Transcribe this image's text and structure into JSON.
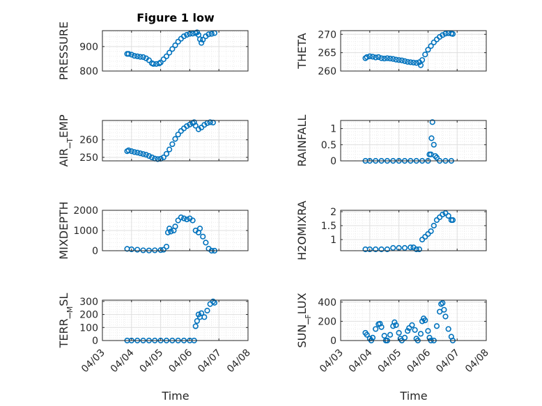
{
  "title": "Figure 1 low",
  "xlabel": "Time",
  "colors": {
    "marker": "#0072BD",
    "axis": "#262626",
    "grid": "#DFDFDF",
    "minor_grid": "#EBEBEB"
  },
  "chart_data": [
    {
      "type": "scatter",
      "ylabel": "PRESSURE",
      "ylim": [
        800,
        965
      ],
      "yticks": [
        800,
        900
      ],
      "xlim": [
        "04/03",
        "04/08"
      ],
      "xticks": [
        "04/03",
        "04/04",
        "04/05",
        "04/06",
        "04/07",
        "04/08"
      ],
      "grid": true,
      "points": [
        [
          3.85,
          870
        ],
        [
          3.9,
          870
        ],
        [
          4.0,
          867
        ],
        [
          4.1,
          862
        ],
        [
          4.2,
          860
        ],
        [
          4.3,
          858
        ],
        [
          4.4,
          857
        ],
        [
          4.5,
          852
        ],
        [
          4.6,
          844
        ],
        [
          4.7,
          832
        ],
        [
          4.75,
          829
        ],
        [
          4.85,
          829
        ],
        [
          4.95,
          831
        ],
        [
          5.0,
          835
        ],
        [
          5.1,
          848
        ],
        [
          5.2,
          860
        ],
        [
          5.3,
          875
        ],
        [
          5.4,
          890
        ],
        [
          5.5,
          905
        ],
        [
          5.6,
          920
        ],
        [
          5.7,
          932
        ],
        [
          5.8,
          942
        ],
        [
          5.9,
          948
        ],
        [
          6.0,
          952
        ],
        [
          6.1,
          953
        ],
        [
          6.2,
          955
        ],
        [
          6.25,
          958
        ],
        [
          6.3,
          948
        ],
        [
          6.35,
          930
        ],
        [
          6.4,
          915
        ],
        [
          6.45,
          928
        ],
        [
          6.55,
          942
        ],
        [
          6.65,
          950
        ],
        [
          6.75,
          952
        ],
        [
          6.85,
          955
        ]
      ]
    },
    {
      "type": "scatter",
      "ylabel": "THETA",
      "ylim": [
        260,
        271
      ],
      "yticks": [
        260,
        265,
        270
      ],
      "xlim": [
        "04/03",
        "04/08"
      ],
      "xticks": [
        "04/03",
        "04/04",
        "04/05",
        "04/06",
        "04/07",
        "04/08"
      ],
      "grid": true,
      "points": [
        [
          3.85,
          263.5
        ],
        [
          3.9,
          263.8
        ],
        [
          4.0,
          264.0
        ],
        [
          4.1,
          263.9
        ],
        [
          4.2,
          263.7
        ],
        [
          4.3,
          263.8
        ],
        [
          4.4,
          263.5
        ],
        [
          4.5,
          263.4
        ],
        [
          4.6,
          263.5
        ],
        [
          4.7,
          263.4
        ],
        [
          4.8,
          263.3
        ],
        [
          4.9,
          263.1
        ],
        [
          5.0,
          263.0
        ],
        [
          5.1,
          262.9
        ],
        [
          5.2,
          262.7
        ],
        [
          5.3,
          262.5
        ],
        [
          5.4,
          262.4
        ],
        [
          5.5,
          262.3
        ],
        [
          5.6,
          262.2
        ],
        [
          5.7,
          262.4
        ],
        [
          5.75,
          261.6
        ],
        [
          5.8,
          263.0
        ],
        [
          5.9,
          264.5
        ],
        [
          6.0,
          265.8
        ],
        [
          6.1,
          266.8
        ],
        [
          6.2,
          267.8
        ],
        [
          6.3,
          268.6
        ],
        [
          6.4,
          269.3
        ],
        [
          6.5,
          269.8
        ],
        [
          6.6,
          270.2
        ],
        [
          6.7,
          270.3
        ],
        [
          6.8,
          270.2
        ],
        [
          6.85,
          270.1
        ]
      ]
    },
    {
      "type": "scatter",
      "ylabel": "AIR_TEMP",
      "ylim": [
        248,
        271
      ],
      "yticks": [
        250,
        260
      ],
      "xlim": [
        "04/03",
        "04/08"
      ],
      "xticks": [
        "04/03",
        "04/04",
        "04/05",
        "04/06",
        "04/07",
        "04/08"
      ],
      "grid": true,
      "points": [
        [
          3.85,
          253.5
        ],
        [
          3.9,
          254.0
        ],
        [
          4.0,
          253.5
        ],
        [
          4.1,
          253.0
        ],
        [
          4.2,
          252.7
        ],
        [
          4.3,
          252.3
        ],
        [
          4.4,
          251.9
        ],
        [
          4.5,
          251.5
        ],
        [
          4.6,
          250.8
        ],
        [
          4.7,
          250.0
        ],
        [
          4.8,
          249.3
        ],
        [
          4.9,
          249.0
        ],
        [
          5.0,
          249.2
        ],
        [
          5.1,
          250.0
        ],
        [
          5.2,
          252.0
        ],
        [
          5.3,
          254.5
        ],
        [
          5.4,
          257.5
        ],
        [
          5.5,
          260.5
        ],
        [
          5.6,
          263.0
        ],
        [
          5.7,
          265.0
        ],
        [
          5.8,
          266.5
        ],
        [
          5.9,
          267.8
        ],
        [
          6.0,
          268.7
        ],
        [
          6.1,
          269.5
        ],
        [
          6.15,
          270.0
        ],
        [
          6.2,
          268.0
        ],
        [
          6.3,
          266.0
        ],
        [
          6.4,
          267.0
        ],
        [
          6.5,
          268.5
        ],
        [
          6.6,
          269.5
        ],
        [
          6.7,
          270.0
        ],
        [
          6.8,
          269.8
        ]
      ]
    },
    {
      "type": "scatter",
      "ylabel": "RAINFALL",
      "ylim": [
        0,
        1.25
      ],
      "yticks": [
        0,
        0.5,
        1
      ],
      "ytick_labels": [
        "0",
        "0.5",
        "1"
      ],
      "xlim": [
        "04/03",
        "04/08"
      ],
      "xticks": [
        "04/03",
        "04/04",
        "04/05",
        "04/06",
        "04/07",
        "04/08"
      ],
      "grid": true,
      "points": [
        [
          3.85,
          0
        ],
        [
          4.0,
          0
        ],
        [
          4.2,
          0
        ],
        [
          4.4,
          0
        ],
        [
          4.6,
          0
        ],
        [
          4.8,
          0
        ],
        [
          5.0,
          0
        ],
        [
          5.2,
          0
        ],
        [
          5.4,
          0
        ],
        [
          5.6,
          0
        ],
        [
          5.8,
          0
        ],
        [
          6.0,
          0
        ],
        [
          6.05,
          0.2
        ],
        [
          6.1,
          0.2
        ],
        [
          6.12,
          0.7
        ],
        [
          6.15,
          1.2
        ],
        [
          6.2,
          0.5
        ],
        [
          6.25,
          0.15
        ],
        [
          6.3,
          0.1
        ],
        [
          6.4,
          0
        ],
        [
          6.6,
          0
        ],
        [
          6.8,
          0
        ]
      ]
    },
    {
      "type": "scatter",
      "ylabel": "MIXDEPTH",
      "ylim": [
        0,
        2000
      ],
      "yticks": [
        0,
        1000,
        2000
      ],
      "xlim": [
        "04/03",
        "04/08"
      ],
      "xticks": [
        "04/03",
        "04/04",
        "04/05",
        "04/06",
        "04/07",
        "04/08"
      ],
      "grid": true,
      "points": [
        [
          3.85,
          90
        ],
        [
          4.0,
          70
        ],
        [
          4.2,
          50
        ],
        [
          4.4,
          20
        ],
        [
          4.6,
          10
        ],
        [
          4.8,
          20
        ],
        [
          5.0,
          30
        ],
        [
          5.1,
          50
        ],
        [
          5.2,
          200
        ],
        [
          5.25,
          900
        ],
        [
          5.3,
          1100
        ],
        [
          5.35,
          950
        ],
        [
          5.45,
          1000
        ],
        [
          5.5,
          1200
        ],
        [
          5.6,
          1500
        ],
        [
          5.7,
          1650
        ],
        [
          5.8,
          1600
        ],
        [
          5.9,
          1550
        ],
        [
          6.0,
          1600
        ],
        [
          6.1,
          1500
        ],
        [
          6.2,
          1000
        ],
        [
          6.3,
          900
        ],
        [
          6.35,
          1100
        ],
        [
          6.45,
          700
        ],
        [
          6.55,
          400
        ],
        [
          6.65,
          100
        ],
        [
          6.75,
          0
        ],
        [
          6.85,
          0
        ]
      ]
    },
    {
      "type": "scatter",
      "ylabel": "H2OMIXRA",
      "ylim": [
        0.6,
        2.05
      ],
      "yticks": [
        1,
        1.5,
        2
      ],
      "ytick_labels": [
        "1",
        "1.5",
        "2"
      ],
      "xlim": [
        "04/03",
        "04/08"
      ],
      "xticks": [
        "04/03",
        "04/04",
        "04/05",
        "04/06",
        "04/07",
        "04/08"
      ],
      "grid": true,
      "points": [
        [
          3.85,
          0.65
        ],
        [
          4.0,
          0.65
        ],
        [
          4.2,
          0.65
        ],
        [
          4.4,
          0.65
        ],
        [
          4.6,
          0.65
        ],
        [
          4.8,
          0.7
        ],
        [
          5.0,
          0.7
        ],
        [
          5.2,
          0.7
        ],
        [
          5.4,
          0.72
        ],
        [
          5.5,
          0.72
        ],
        [
          5.6,
          0.65
        ],
        [
          5.7,
          0.65
        ],
        [
          5.8,
          1.0
        ],
        [
          5.9,
          1.1
        ],
        [
          6.0,
          1.2
        ],
        [
          6.1,
          1.3
        ],
        [
          6.2,
          1.5
        ],
        [
          6.3,
          1.7
        ],
        [
          6.4,
          1.8
        ],
        [
          6.5,
          1.9
        ],
        [
          6.6,
          1.95
        ],
        [
          6.7,
          1.85
        ],
        [
          6.8,
          1.7
        ],
        [
          6.85,
          1.7
        ]
      ]
    },
    {
      "type": "scatter",
      "ylabel": "TERR_MSL",
      "ylim": [
        0,
        310
      ],
      "yticks": [
        0,
        100,
        200,
        300
      ],
      "xlim": [
        "04/03",
        "04/08"
      ],
      "xticks": [
        "04/03",
        "04/04",
        "04/05",
        "04/06",
        "04/07",
        "04/08"
      ],
      "grid": true,
      "points": [
        [
          3.85,
          0
        ],
        [
          4.0,
          0
        ],
        [
          4.2,
          0
        ],
        [
          4.4,
          0
        ],
        [
          4.6,
          0
        ],
        [
          4.8,
          0
        ],
        [
          5.0,
          0
        ],
        [
          5.2,
          0
        ],
        [
          5.4,
          0
        ],
        [
          5.6,
          0
        ],
        [
          5.8,
          0
        ],
        [
          6.0,
          0
        ],
        [
          6.15,
          0
        ],
        [
          6.2,
          110
        ],
        [
          6.25,
          150
        ],
        [
          6.3,
          200
        ],
        [
          6.35,
          180
        ],
        [
          6.4,
          210
        ],
        [
          6.5,
          180
        ],
        [
          6.6,
          230
        ],
        [
          6.7,
          280
        ],
        [
          6.8,
          300
        ],
        [
          6.85,
          290
        ]
      ]
    },
    {
      "type": "scatter",
      "ylabel": "SUN_FLUX",
      "ylim": [
        0,
        420
      ],
      "yticks": [
        0,
        200,
        400
      ],
      "xlim": [
        "04/03",
        "04/08"
      ],
      "xticks": [
        "04/03",
        "04/04",
        "04/05",
        "04/06",
        "04/07",
        "04/08"
      ],
      "grid": true,
      "points": [
        [
          3.85,
          80
        ],
        [
          3.9,
          60
        ],
        [
          4.0,
          20
        ],
        [
          4.05,
          0
        ],
        [
          4.1,
          30
        ],
        [
          4.2,
          120
        ],
        [
          4.3,
          170
        ],
        [
          4.35,
          175
        ],
        [
          4.4,
          140
        ],
        [
          4.5,
          50
        ],
        [
          4.55,
          0
        ],
        [
          4.6,
          0
        ],
        [
          4.7,
          60
        ],
        [
          4.8,
          150
        ],
        [
          4.85,
          190
        ],
        [
          4.9,
          160
        ],
        [
          5.0,
          80
        ],
        [
          5.05,
          20
        ],
        [
          5.1,
          0
        ],
        [
          5.2,
          30
        ],
        [
          5.3,
          100
        ],
        [
          5.35,
          130
        ],
        [
          5.45,
          160
        ],
        [
          5.55,
          110
        ],
        [
          5.6,
          20
        ],
        [
          5.65,
          0
        ],
        [
          5.75,
          70
        ],
        [
          5.8,
          200
        ],
        [
          5.85,
          230
        ],
        [
          5.9,
          210
        ],
        [
          6.0,
          100
        ],
        [
          6.05,
          30
        ],
        [
          6.1,
          0
        ],
        [
          6.2,
          0
        ],
        [
          6.3,
          150
        ],
        [
          6.4,
          300
        ],
        [
          6.45,
          380
        ],
        [
          6.5,
          390
        ],
        [
          6.55,
          320
        ],
        [
          6.6,
          250
        ],
        [
          6.7,
          120
        ],
        [
          6.8,
          40
        ],
        [
          6.85,
          0
        ]
      ]
    }
  ]
}
